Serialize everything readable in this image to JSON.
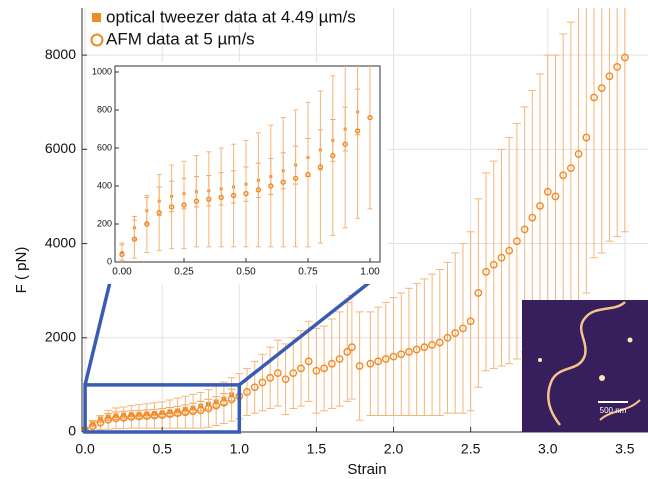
{
  "chart_data": {
    "type": "errorbar",
    "xlabel": "Strain",
    "ylabel": "F ( pN)",
    "xlim": [
      -0.02,
      3.65
    ],
    "ylim": [
      0,
      9000
    ],
    "xticks": [
      {
        "value": 0,
        "label": "0.0"
      },
      0.5,
      {
        "value": 1,
        "label": "1.0"
      },
      1.5,
      {
        "value": 2,
        "label": "2.0"
      },
      2.5,
      {
        "value": 3,
        "label": "3.0"
      },
      3.5
    ],
    "yticks": [
      0,
      2000,
      4000,
      6000,
      8000
    ],
    "grid": true,
    "legend": "upper left",
    "series": [
      {
        "name": "optical tweezer data at 4.49 µm/s",
        "color": "#f08a24",
        "marker": "square",
        "x": [
          0,
          0.05,
          0.1,
          0.15,
          0.2,
          0.25,
          0.3,
          0.35,
          0.4,
          0.45,
          0.5,
          0.55,
          0.6,
          0.65,
          0.7,
          0.75,
          0.8,
          0.85,
          0.9,
          0.95
        ],
        "values": [
          50,
          180,
          270,
          320,
          345,
          360,
          370,
          375,
          385,
          395,
          410,
          430,
          450,
          480,
          510,
          550,
          590,
          640,
          700,
          790
        ],
        "errors": [
          40,
          60,
          70,
          75,
          80,
          80,
          80,
          80,
          85,
          85,
          90,
          90,
          95,
          95,
          100,
          100,
          105,
          110,
          115,
          120
        ]
      },
      {
        "name": "AFM data at 5 µm/s",
        "color": "#f08a24",
        "marker": "circle",
        "x": [
          0,
          0.05,
          0.1,
          0.15,
          0.2,
          0.25,
          0.3,
          0.35,
          0.4,
          0.45,
          0.5,
          0.55,
          0.6,
          0.65,
          0.7,
          0.75,
          0.8,
          0.85,
          0.9,
          0.95,
          1.0,
          1.05,
          1.1,
          1.15,
          1.2,
          1.25,
          1.3,
          1.35,
          1.4,
          1.45,
          1.5,
          1.55,
          1.6,
          1.65,
          1.7,
          1.73,
          1.78,
          1.85,
          1.9,
          1.95,
          2.0,
          2.05,
          2.1,
          2.15,
          2.2,
          2.25,
          2.3,
          2.35,
          2.4,
          2.45,
          2.5,
          2.55,
          2.6,
          2.65,
          2.7,
          2.75,
          2.8,
          2.85,
          2.9,
          2.95,
          3.0,
          3.05,
          3.1,
          3.15,
          3.2,
          3.25,
          3.3,
          3.35,
          3.4,
          3.45,
          3.5
        ],
        "values": [
          40,
          120,
          200,
          260,
          290,
          300,
          320,
          330,
          340,
          350,
          360,
          380,
          400,
          420,
          440,
          460,
          500,
          560,
          620,
          690,
          760,
          850,
          950,
          1050,
          1150,
          1250,
          1120,
          1250,
          1350,
          1500,
          1300,
          1350,
          1450,
          1550,
          1700,
          1800,
          1400,
          1450,
          1500,
          1550,
          1600,
          1650,
          1700,
          1750,
          1800,
          1850,
          1900,
          2000,
          2100,
          2200,
          2350,
          2950,
          3400,
          3550,
          3700,
          3850,
          4050,
          4300,
          4550,
          4800,
          5100,
          5000,
          5450,
          5600,
          5900,
          6250,
          7100,
          7300,
          7550,
          7750,
          7950
        ],
        "errors": [
          60,
          100,
          150,
          200,
          220,
          230,
          240,
          250,
          260,
          270,
          280,
          300,
          320,
          340,
          360,
          380,
          400,
          420,
          440,
          460,
          480,
          500,
          550,
          600,
          650,
          700,
          750,
          750,
          800,
          850,
          900,
          900,
          950,
          1000,
          1050,
          1100,
          1150,
          1100,
          1150,
          1200,
          1250,
          1300,
          1350,
          1400,
          1450,
          1500,
          1550,
          1600,
          1700,
          1800,
          1900,
          2000,
          2100,
          2200,
          2300,
          2400,
          2500,
          2600,
          2700,
          2800,
          2900,
          3000,
          3000,
          3100,
          3200,
          3300,
          3400,
          3500,
          3500,
          3600,
          3700
        ]
      }
    ],
    "inset": {
      "xlim": [
        0,
        1
      ],
      "ylim": [
        0,
        1000
      ],
      "xticks": [
        {
          "value": 0,
          "label": "0.00"
        },
        0.25,
        {
          "value": 0.5,
          "label": "0.50"
        },
        0.75,
        {
          "value": 1,
          "label": "1.00"
        }
      ],
      "yticks": [
        0,
        200,
        400,
        600,
        800,
        1000
      ]
    },
    "image_scale_label": "500 nm"
  }
}
